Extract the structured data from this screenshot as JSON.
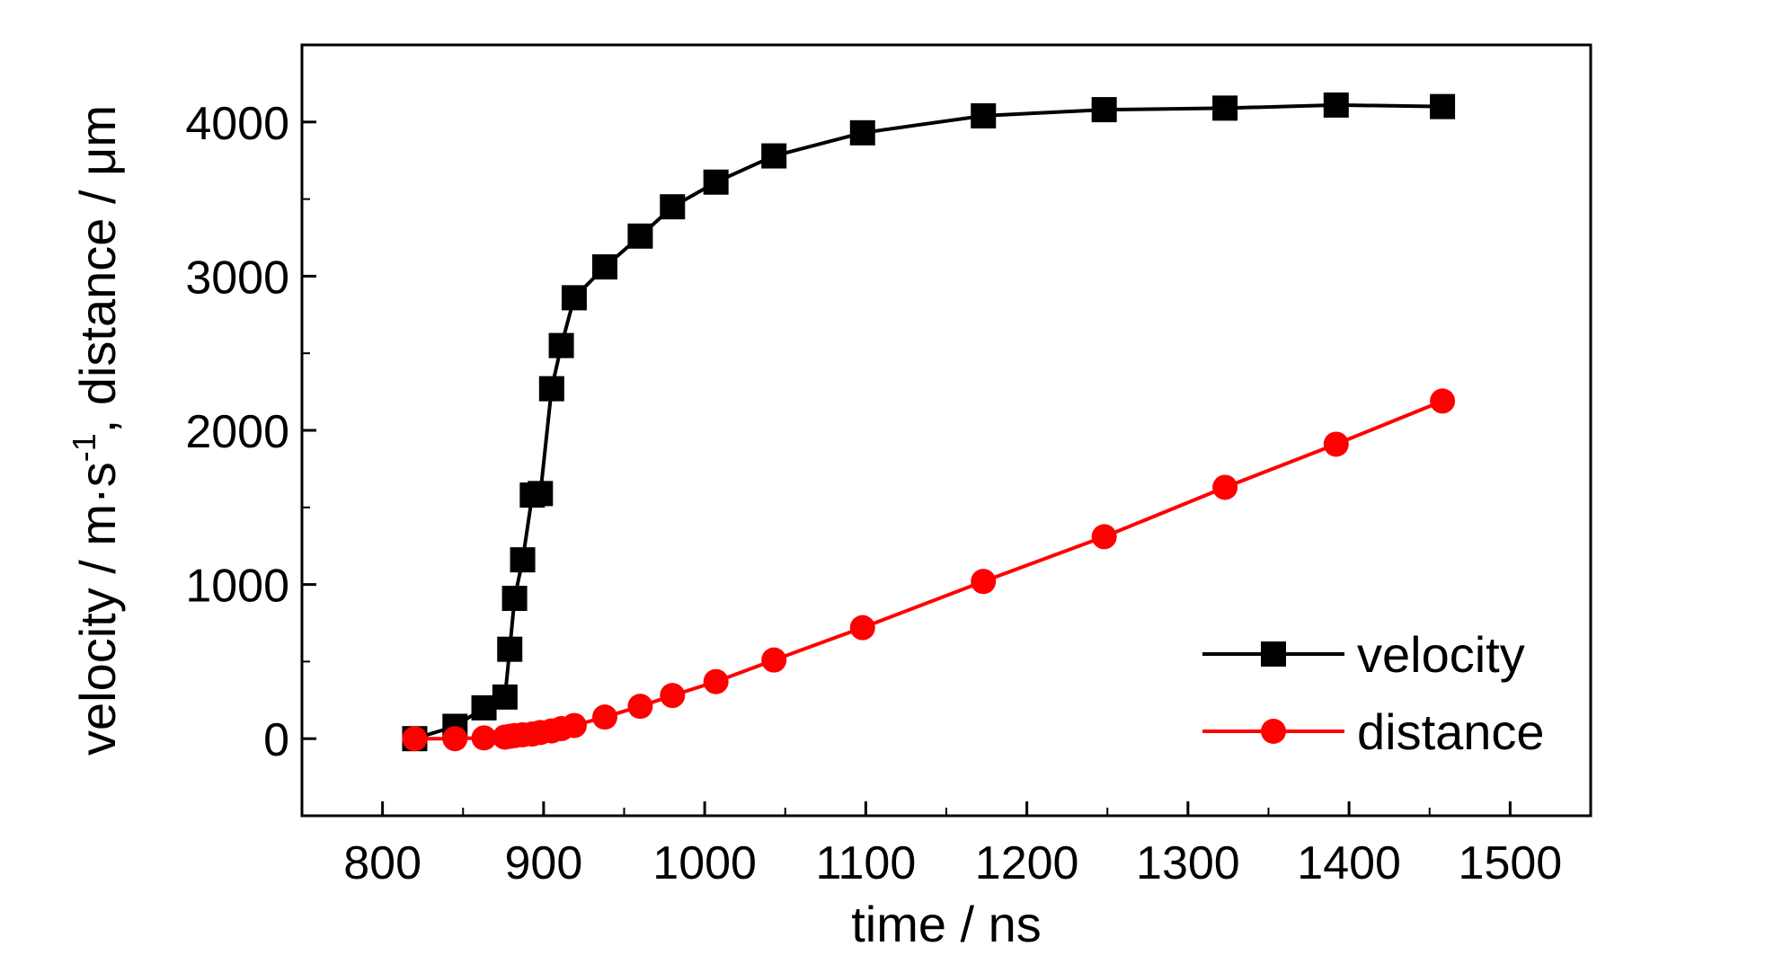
{
  "chart_data": {
    "type": "line",
    "title": "",
    "xlabel": "time / ns",
    "ylabel": "velocity / m·s-1, distance / μm",
    "ylabel_parts": {
      "main": "velocity / m·s",
      "superscript": "-1",
      "tail": ", distance / μm"
    },
    "xlim": [
      750,
      1550
    ],
    "ylim": [
      -500,
      4500
    ],
    "xticks": [
      800,
      900,
      1000,
      1100,
      1200,
      1300,
      1400,
      1500
    ],
    "xtick_labels": [
      "800",
      "900",
      "1000",
      "1100",
      "1200",
      "1300",
      "1400",
      "1500"
    ],
    "yticks": [
      0,
      1000,
      2000,
      3000,
      4000
    ],
    "ytick_labels": [
      "0",
      "1000",
      "2000",
      "3000",
      "4000"
    ],
    "grid": false,
    "legend_position": "bottom-right",
    "series": [
      {
        "name": "velocity",
        "color": "#000000",
        "marker": "square",
        "x": [
          820,
          845,
          863,
          876,
          879,
          882,
          887,
          893,
          898,
          905,
          911,
          919,
          938,
          960,
          980,
          1007,
          1043,
          1098,
          1173,
          1248,
          1323,
          1392,
          1458
        ],
        "y": [
          0,
          80,
          200,
          270,
          580,
          910,
          1160,
          1580,
          1590,
          2270,
          2550,
          2860,
          3060,
          3260,
          3450,
          3610,
          3780,
          3930,
          4040,
          4080,
          4090,
          4110,
          4100
        ]
      },
      {
        "name": "distance",
        "color": "#ff0000",
        "marker": "circle",
        "x": [
          820,
          845,
          863,
          876,
          879,
          882,
          887,
          893,
          898,
          905,
          911,
          919,
          938,
          960,
          980,
          1007,
          1043,
          1098,
          1173,
          1248,
          1323,
          1392,
          1458
        ],
        "y": [
          0,
          0,
          5,
          10,
          15,
          20,
          25,
          30,
          40,
          50,
          65,
          85,
          140,
          210,
          280,
          370,
          510,
          720,
          1020,
          1310,
          1630,
          1910,
          2190
        ]
      }
    ]
  }
}
